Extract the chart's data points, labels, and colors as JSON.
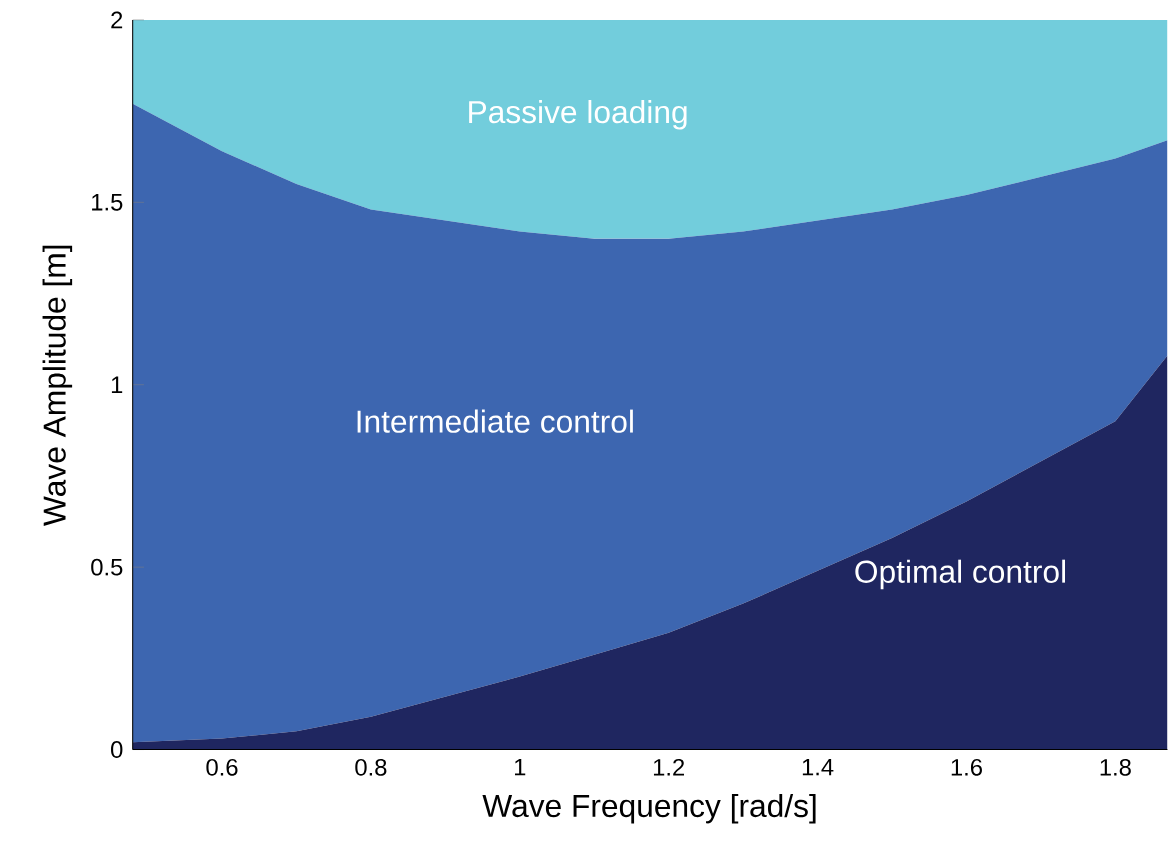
{
  "chart_data": {
    "type": "area",
    "stacked": true,
    "xlabel": "Wave Frequency [rad/s]",
    "ylabel": "Wave Amplitude [m]",
    "x": [
      0.48,
      0.6,
      0.7,
      0.8,
      1.0,
      1.1,
      1.2,
      1.3,
      1.4,
      1.5,
      1.6,
      1.7,
      1.8,
      1.87
    ],
    "series": [
      {
        "name": "Optimal control",
        "color": "#1f2660",
        "values": [
          0.02,
          0.03,
          0.05,
          0.09,
          0.2,
          0.26,
          0.32,
          0.4,
          0.49,
          0.58,
          0.68,
          0.79,
          0.9,
          1.08
        ]
      },
      {
        "name": "Intermediate control",
        "color": "#3d66b0",
        "values": [
          1.75,
          1.61,
          1.5,
          1.39,
          1.22,
          1.14,
          1.08,
          1.02,
          0.96,
          0.9,
          0.84,
          0.78,
          0.72,
          0.59
        ]
      },
      {
        "name": "Passive loading",
        "color": "#72cddc",
        "values": [
          0.23,
          0.36,
          0.45,
          0.52,
          0.58,
          0.6,
          0.6,
          0.58,
          0.55,
          0.52,
          0.48,
          0.43,
          0.38,
          0.33
        ]
      }
    ],
    "xlim": [
      0.48,
      1.87
    ],
    "ylim": [
      0,
      2
    ],
    "xticks": [
      0.6,
      0.8,
      1,
      1.2,
      1.4,
      1.6,
      1.8
    ],
    "yticks": [
      0,
      0.5,
      1,
      1.5,
      2
    ]
  }
}
